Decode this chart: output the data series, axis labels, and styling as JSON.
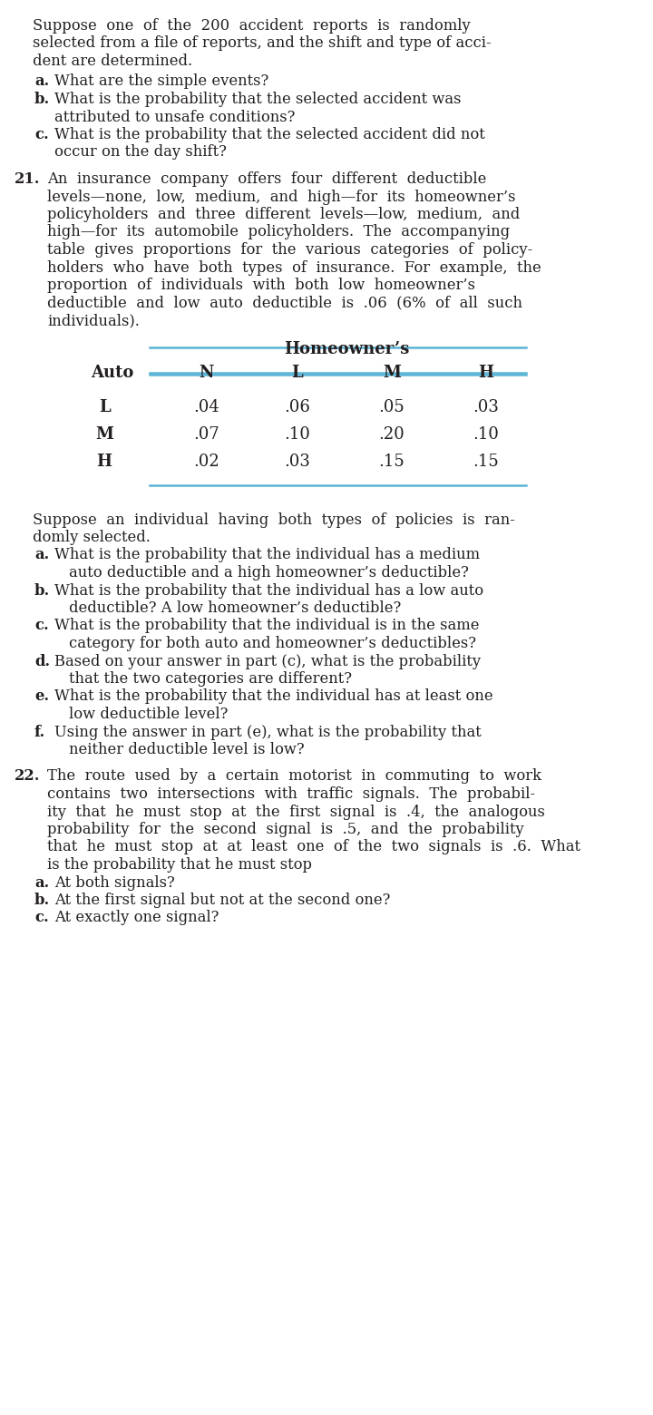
{
  "bg_color": "#ffffff",
  "text_color": "#231f20",
  "line_color": "#5ab4d6",
  "fs": 11.8,
  "fs_bold": 11.8,
  "fs_table": 13.0,
  "lh": 19.5,
  "para0_lines": [
    "Suppose  one  of  the  200  accident  reports  is  randomly",
    "selected from a file of reports, and the shift and type of acci-",
    "dent are determined."
  ],
  "para0_items": [
    [
      "a.",
      "What are the simple events?"
    ],
    [
      "b.",
      "What is the probability that the selected accident was",
      "     attributed to unsafe conditions?"
    ],
    [
      "c.",
      "What is the probability that the selected accident did not",
      "     occur on the day shift?"
    ]
  ],
  "q21_number": "21.",
  "q21_lines": [
    "An  insurance  company  offers  four  different  deductible",
    "levels—none,  low,  medium,  and  high—for  its  homeowner’s",
    "policyholders  and  three  different  levels—low,  medium,  and",
    "high—for  its  automobile  policyholders.  The  accompanying",
    "table  gives  proportions  for  the  various  categories  of  policy-",
    "holders  who  have  both  types  of  insurance.  For  example,  the",
    "proportion  of  individuals  with  both  low  homeowner’s",
    "deductible  and  low  auto  deductible  is  .06  (6%  of  all  such",
    "individuals)."
  ],
  "table_title": "Homeowner’s",
  "table_col_headers": [
    "N",
    "L",
    "M",
    "H"
  ],
  "table_row_headers": [
    "L",
    "M",
    "H"
  ],
  "table_row_label": "Auto",
  "table_data": [
    [
      ".04",
      ".06",
      ".05",
      ".03"
    ],
    [
      ".07",
      ".10",
      ".20",
      ".10"
    ],
    [
      ".02",
      ".03",
      ".15",
      ".15"
    ]
  ],
  "para2_lines": [
    "Suppose  an  individual  having  both  types  of  policies  is  ran-",
    "domly selected."
  ],
  "para2_items": [
    [
      "a.",
      "What is the probability that the individual has a medium",
      "     auto deductible and a high homeowner’s deductible?"
    ],
    [
      "b.",
      "What is the probability that the individual has a low auto",
      "     deductible? A low homeowner’s deductible?"
    ],
    [
      "c.",
      "What is the probability that the individual is in the same",
      "     category for both auto and homeowner’s deductibles?"
    ],
    [
      "d.",
      "Based on your answer in part (c), what is the probability",
      "     that the two categories are different?"
    ],
    [
      "e.",
      "What is the probability that the individual has at least one",
      "     low deductible level?"
    ],
    [
      "f.",
      "Using the answer in part (e), what is the probability that",
      "     neither deductible level is low?"
    ]
  ],
  "q22_number": "22.",
  "q22_lines": [
    "The  route  used  by  a  certain  motorist  in  commuting  to  work",
    "contains  two  intersections  with  traffic  signals.  The  probabil-",
    "ity  that  he  must  stop  at  the  first  signal  is  .4,  the  analogous",
    "probability  for  the  second  signal  is  .5,  and  the  probability",
    "that  he  must  stop  at  at  least  one  of  the  two  signals  is  .6.  What",
    "is the probability that he must stop"
  ],
  "q22_items": [
    [
      "a.",
      "At both signals?"
    ],
    [
      "b.",
      "At the first signal but not at the second one?"
    ],
    [
      "c.",
      "At exactly one signal?"
    ]
  ]
}
